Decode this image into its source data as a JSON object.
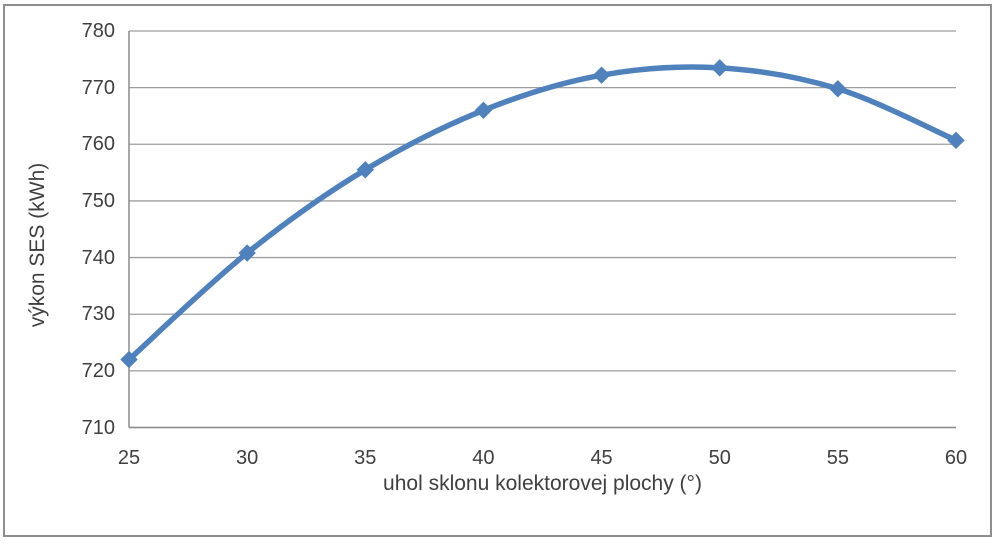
{
  "chart_data": {
    "type": "line",
    "x": [
      25,
      30,
      35,
      40,
      45,
      50,
      55,
      60
    ],
    "series": [
      {
        "values": [
          722,
          740.8,
          755.5,
          766,
          772.2,
          773.5,
          769.8,
          760.7
        ]
      }
    ],
    "xlabel": "uhol sklonu kolektorovej plochy (°)",
    "ylabel": "výkon SES (kWh)",
    "ylim": [
      710,
      780
    ],
    "y_ticks": [
      710,
      720,
      730,
      740,
      750,
      760,
      770,
      780
    ],
    "x_ticks": [
      25,
      30,
      35,
      40,
      45,
      50,
      55,
      60
    ],
    "grid": "horizontal",
    "legend": "none",
    "line_style": "smooth",
    "marker": "diamond",
    "colors": {
      "line": "#4f81bd",
      "grid": "#9e9e9e",
      "axis": "#8c8c8c",
      "text": "#3f3f3f",
      "frame_border": "#8e8e8e",
      "background": "#ffffff"
    }
  }
}
